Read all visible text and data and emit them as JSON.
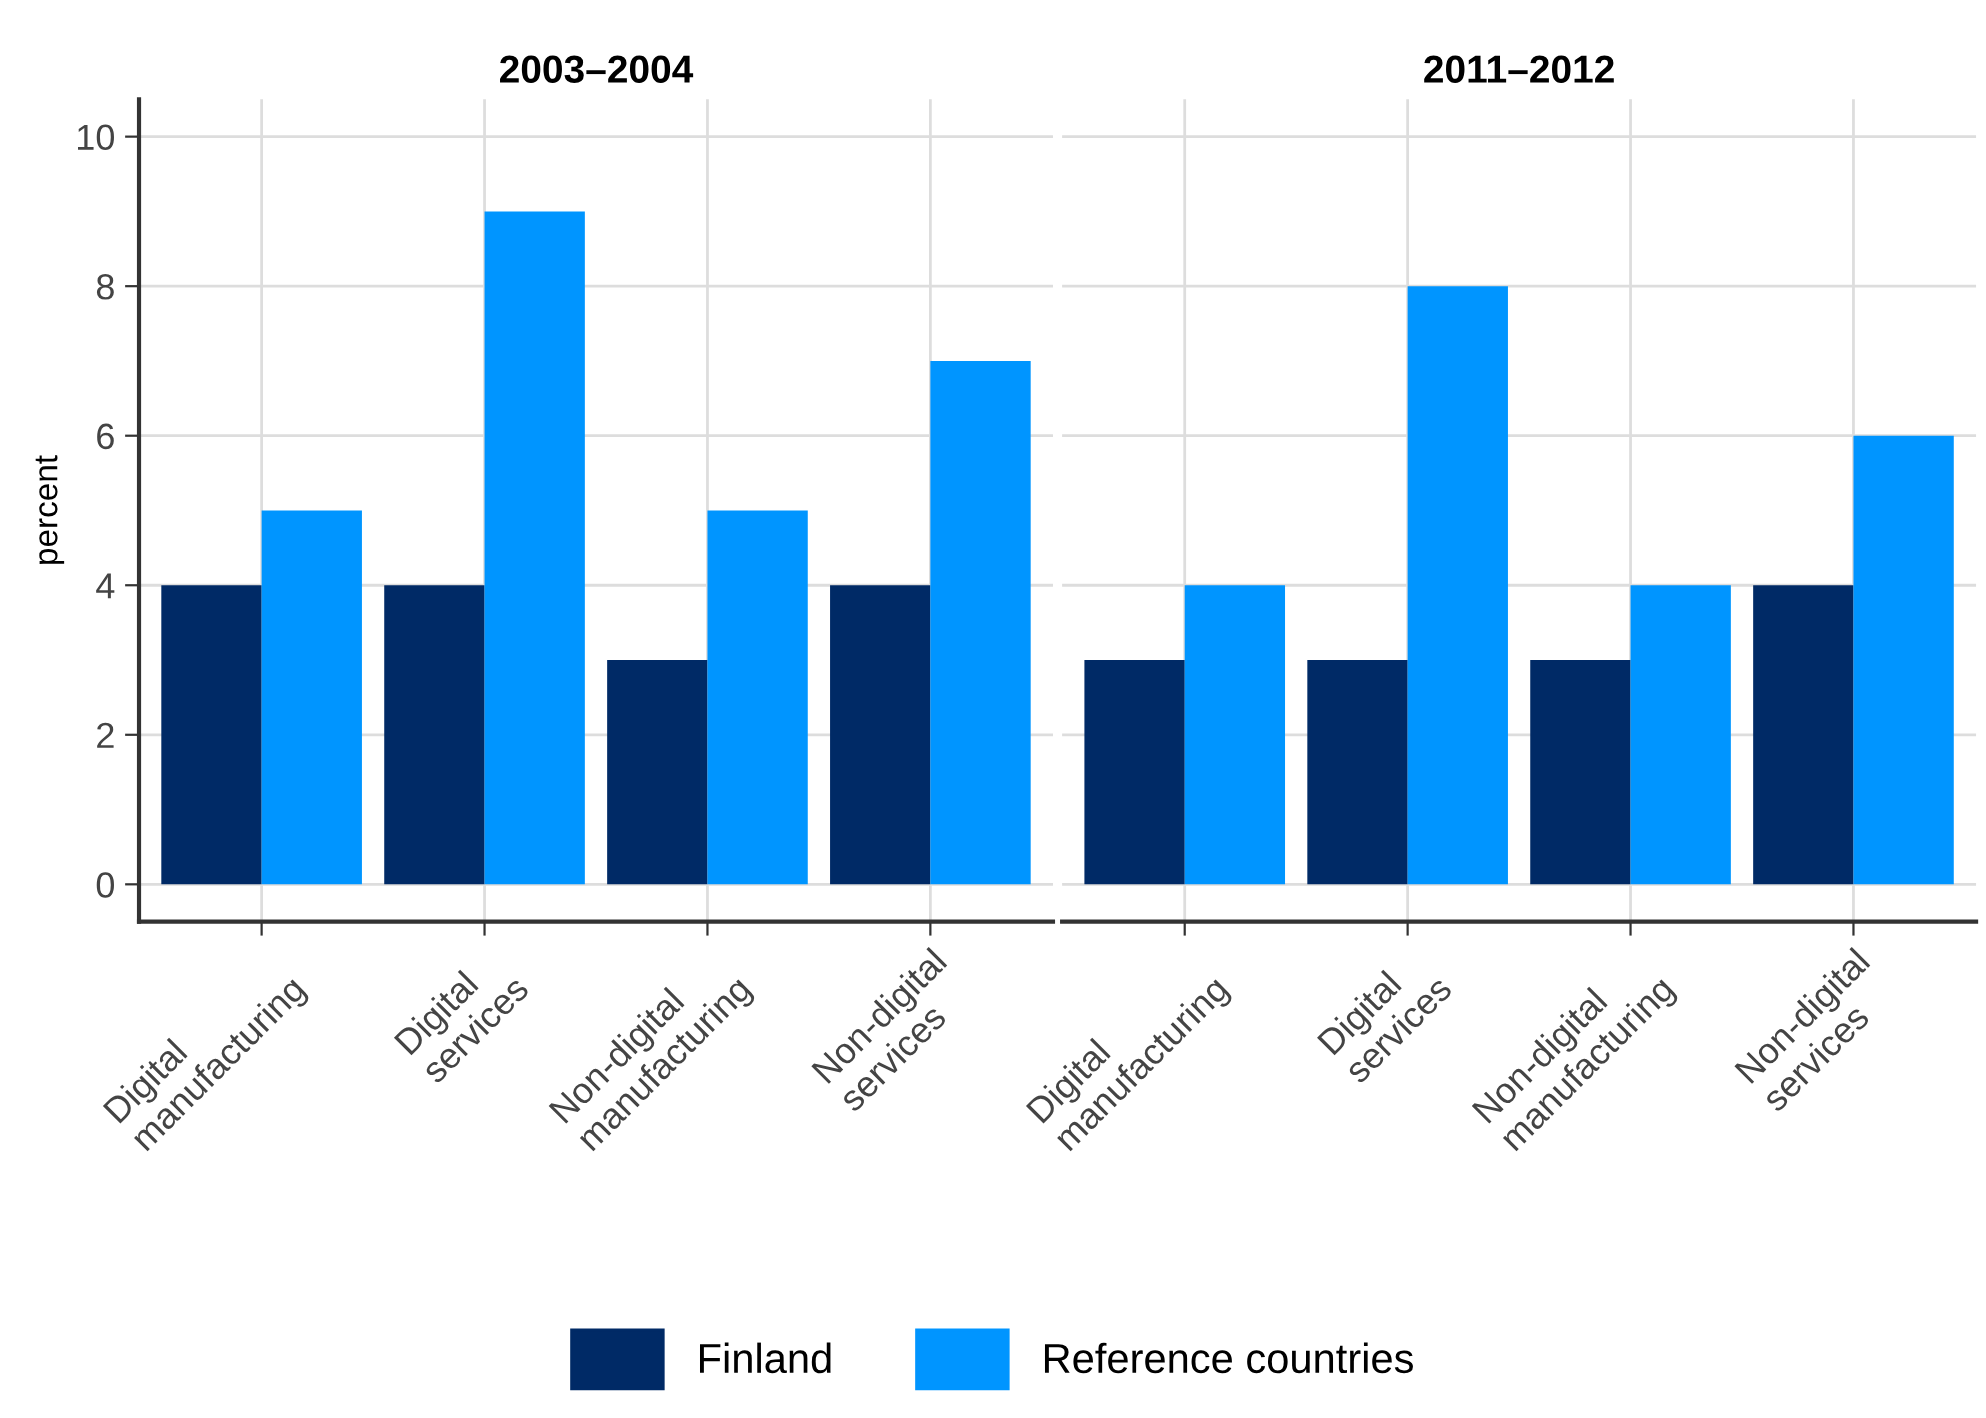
{
  "chart_data": [
    {
      "type": "bar",
      "title": "2003–2004",
      "ylabel": "percent",
      "categories": [
        "Digital\nmanufacturing",
        "Digital\nservices",
        "Non-digital\nmanufacturing",
        "Non-digital\nservices"
      ],
      "series": [
        {
          "name": "Finland",
          "color": "#002a66",
          "values": [
            4,
            4,
            3,
            4
          ]
        },
        {
          "name": "Reference countries",
          "color": "#0095ff",
          "values": [
            5,
            9,
            5,
            7
          ]
        }
      ],
      "ylim": [
        -0.5,
        10.5
      ],
      "yticks": [
        0,
        2,
        4,
        6,
        8,
        10
      ],
      "grid": true,
      "legend": "bottom"
    },
    {
      "type": "bar",
      "title": "2011–2012",
      "categories": [
        "Digital\nmanufacturing",
        "Digital\nservices",
        "Non-digital\nmanufacturing",
        "Non-digital\nservices"
      ],
      "series": [
        {
          "color": "#002a66",
          "values": [
            3,
            3,
            3,
            4
          ]
        },
        {
          "color": "#0095ff",
          "values": [
            4,
            8,
            4,
            6
          ]
        }
      ],
      "ylim": [
        -0.5,
        10.5
      ],
      "yticks": [
        0,
        2,
        4,
        6,
        8,
        10
      ],
      "grid": true,
      "tick_labels": "x"
    }
  ]
}
